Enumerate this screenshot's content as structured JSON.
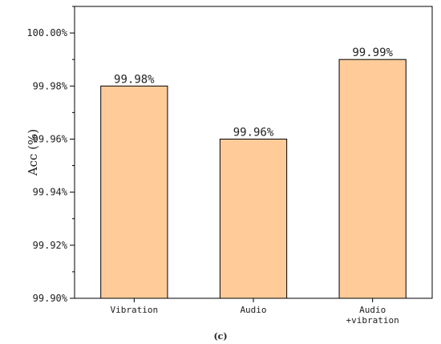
{
  "chart_data": {
    "type": "bar",
    "categories": [
      {
        "lines": [
          "Vibration"
        ]
      },
      {
        "lines": [
          "Audio"
        ]
      },
      {
        "lines": [
          "Audio",
          "+vibration"
        ]
      }
    ],
    "values": [
      99.98,
      99.96,
      99.99
    ],
    "data_labels": [
      "99.98%",
      "99.96%",
      "99.99%"
    ],
    "ylabel": "Acc (%)",
    "ylim": [
      99.9,
      100.01
    ],
    "yticks": [
      99.9,
      99.92,
      99.94,
      99.96,
      99.98,
      100.0
    ],
    "ytick_labels": [
      "99.90%",
      "99.92%",
      "99.94%",
      "99.96%",
      "99.98%",
      "100.00%"
    ],
    "bar_color": "#FFCC99",
    "bar_edge_color": "#000000",
    "grid": false,
    "caption": "(c)"
  }
}
